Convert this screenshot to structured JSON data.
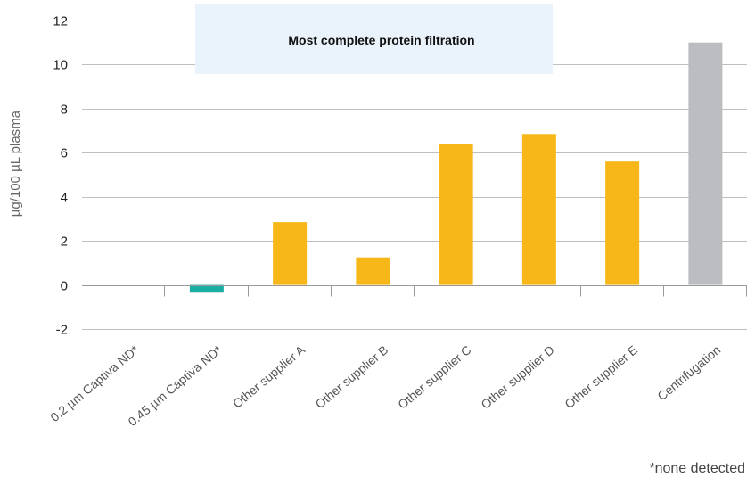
{
  "chart_data": {
    "type": "bar",
    "categories": [
      "0.2 µm Captiva ND*",
      "0.45 µm Captiva ND*",
      "Other supplier A",
      "Other supplier B",
      "Other supplier C",
      "Other supplier D",
      "Other supplier E",
      "Centrifugation"
    ],
    "values": [
      0,
      -0.35,
      2.85,
      1.25,
      6.4,
      6.85,
      5.6,
      11.0
    ],
    "bar_colors": [
      "#1aada3",
      "#1aada3",
      "#f7b718",
      "#f7b718",
      "#f7b718",
      "#f7b718",
      "#f7b718",
      "#bcbdc0"
    ],
    "ylabel": "µg/100 µL plasma",
    "ylim": [
      -2,
      12
    ],
    "yticks": [
      -2,
      0,
      2,
      4,
      6,
      8,
      10,
      12
    ],
    "grid": true,
    "annotation": "Most complete protein filtration",
    "annotation_bg": "#eaf3fc",
    "footnote": "*none detected"
  }
}
